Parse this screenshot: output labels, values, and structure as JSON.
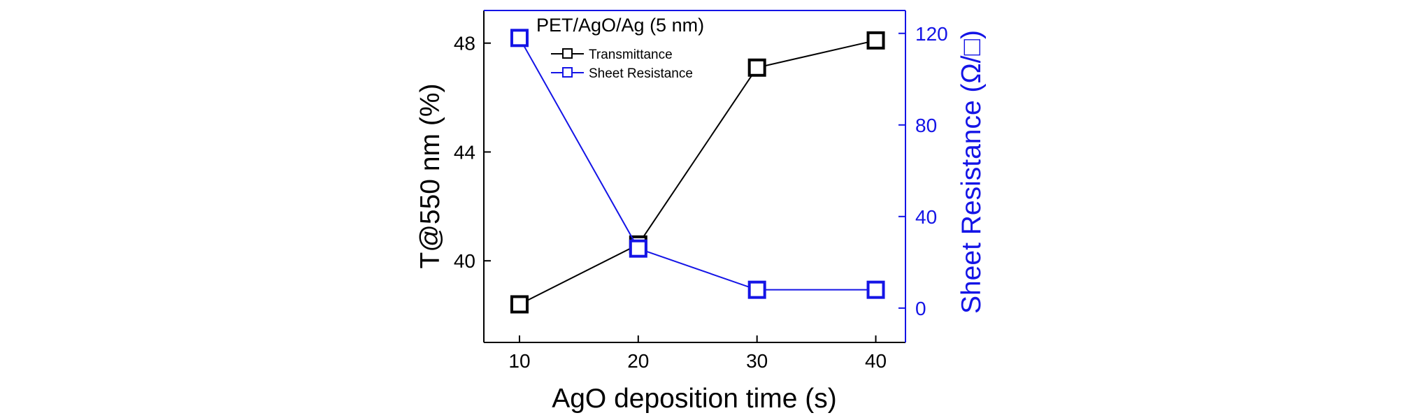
{
  "chart_data": {
    "type": "line",
    "title": "PET/AgO/Ag (5 nm)",
    "xlabel": "AgO deposition time (s)",
    "ylabel": "T@550 nm (%)",
    "y2label": "Sheet Resistance (Ω/□)",
    "x": [
      10,
      20,
      30,
      40
    ],
    "xticks": [
      10,
      20,
      30,
      40
    ],
    "xlim": [
      7,
      42.5
    ],
    "ylim": [
      37,
      49.2
    ],
    "yticks": [
      40,
      44,
      48
    ],
    "y2lim": [
      -15,
      130
    ],
    "y2ticks": [
      0,
      40,
      80,
      120
    ],
    "legend_position": "top-left",
    "series": [
      {
        "name": "Transmittance",
        "axis": "left",
        "color": "#000000",
        "values": [
          38.4,
          40.6,
          47.1,
          48.1
        ]
      },
      {
        "name": "Sheet Resistance",
        "axis": "right",
        "color": "#1414e6",
        "values": [
          118,
          26,
          8,
          8
        ]
      }
    ]
  }
}
